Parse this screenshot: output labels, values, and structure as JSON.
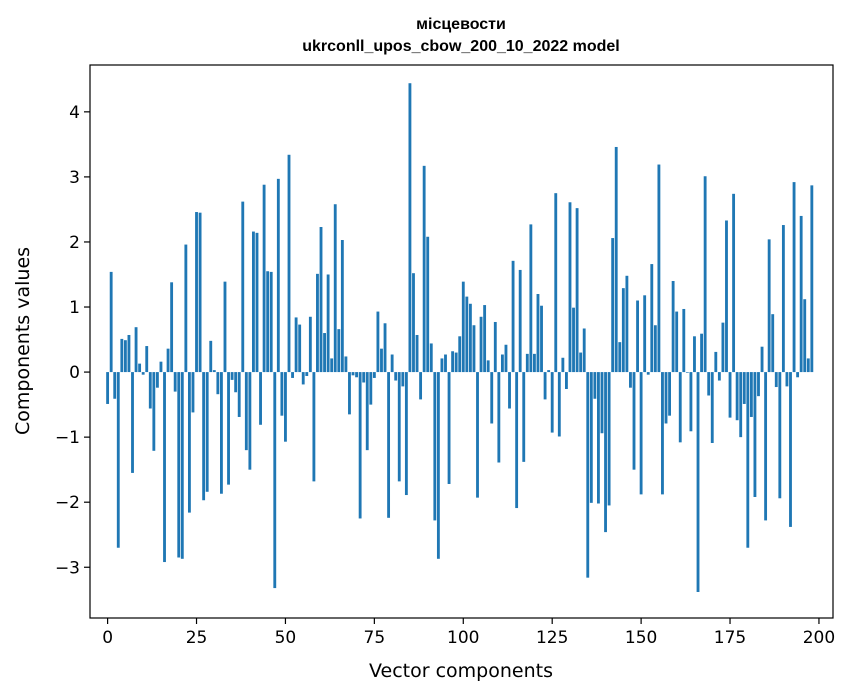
{
  "chart_data": {
    "type": "bar",
    "title_line1": "місцевости",
    "title_line2": "ukrconll_upos_cbow_200_10_2022 model",
    "xlabel": "Vector components",
    "ylabel": "Components values",
    "xlim": [
      -4.95,
      203.95
    ],
    "ylim": [
      -3.78,
      4.72
    ],
    "xticks": [
      0,
      25,
      50,
      75,
      100,
      125,
      150,
      175,
      200
    ],
    "xtick_labels": [
      "0",
      "25",
      "50",
      "75",
      "100",
      "125",
      "150",
      "175",
      "200"
    ],
    "yticks": [
      -3,
      -2,
      -1,
      0,
      1,
      2,
      3,
      4
    ],
    "ytick_labels": [
      "−3",
      "−2",
      "−1",
      "0",
      "1",
      "2",
      "3",
      "4"
    ],
    "grid": false,
    "bar_color": "#1f77b4",
    "values": [
      -0.49,
      1.54,
      -0.41,
      -2.7,
      0.51,
      0.49,
      0.57,
      -1.55,
      0.69,
      0.13,
      -0.04,
      0.4,
      -0.56,
      -1.21,
      -0.24,
      0.16,
      -2.92,
      0.36,
      1.38,
      -0.3,
      -2.85,
      -2.87,
      1.96,
      -2.16,
      -0.62,
      2.46,
      2.45,
      -1.97,
      -1.84,
      0.48,
      0.03,
      -0.34,
      -1.87,
      1.39,
      -1.73,
      -0.12,
      -0.31,
      -0.69,
      2.62,
      -1.2,
      -1.5,
      2.16,
      2.14,
      -0.81,
      2.88,
      1.55,
      1.54,
      -3.32,
      2.97,
      -0.67,
      -1.07,
      3.34,
      -0.09,
      0.84,
      0.73,
      -0.19,
      -0.06,
      0.85,
      -1.68,
      1.51,
      2.23,
      0.6,
      1.5,
      0.21,
      2.58,
      0.66,
      2.03,
      0.24,
      -0.65,
      -0.05,
      -0.08,
      -2.25,
      -0.16,
      -1.2,
      -0.5,
      -0.09,
      0.93,
      0.36,
      0.75,
      -2.24,
      0.27,
      -0.13,
      -1.68,
      -0.22,
      -1.89,
      4.44,
      1.52,
      0.57,
      -0.42,
      3.17,
      2.08,
      0.44,
      -2.28,
      -2.87,
      0.21,
      0.27,
      -1.72,
      0.32,
      0.3,
      0.55,
      1.39,
      1.16,
      1.05,
      0.72,
      -1.93,
      0.85,
      1.03,
      0.18,
      -0.79,
      0.77,
      -1.39,
      0.27,
      0.42,
      -0.56,
      1.71,
      -2.09,
      1.57,
      -1.38,
      0.28,
      2.27,
      0.28,
      1.2,
      1.02,
      -0.42,
      0.03,
      -0.93,
      2.75,
      -0.99,
      0.22,
      -0.26,
      2.61,
      0.99,
      2.52,
      0.3,
      0.67,
      -3.16,
      -2.01,
      -0.41,
      -2.02,
      -0.94,
      -2.46,
      -2.05,
      2.06,
      3.46,
      0.46,
      1.29,
      1.48,
      -0.24,
      -1.5,
      1.1,
      -1.88,
      1.18,
      -0.04,
      1.66,
      0.72,
      3.19,
      -1.88,
      -0.79,
      -0.67,
      1.4,
      0.93,
      -1.08,
      0.97,
      -0.01,
      -0.91,
      0.55,
      -3.38,
      0.59,
      3.01,
      -0.36,
      -1.09,
      0.31,
      -0.13,
      0.76,
      2.33,
      -0.7,
      2.74,
      -0.74,
      -1.0,
      -0.49,
      -2.7,
      -0.69,
      -1.92,
      -0.37,
      0.39,
      -2.28,
      2.04,
      0.89,
      -0.23,
      -1.94,
      2.26,
      -0.22,
      -2.38,
      2.92,
      -0.08,
      2.4,
      1.12,
      0.21,
      2.87
    ]
  }
}
